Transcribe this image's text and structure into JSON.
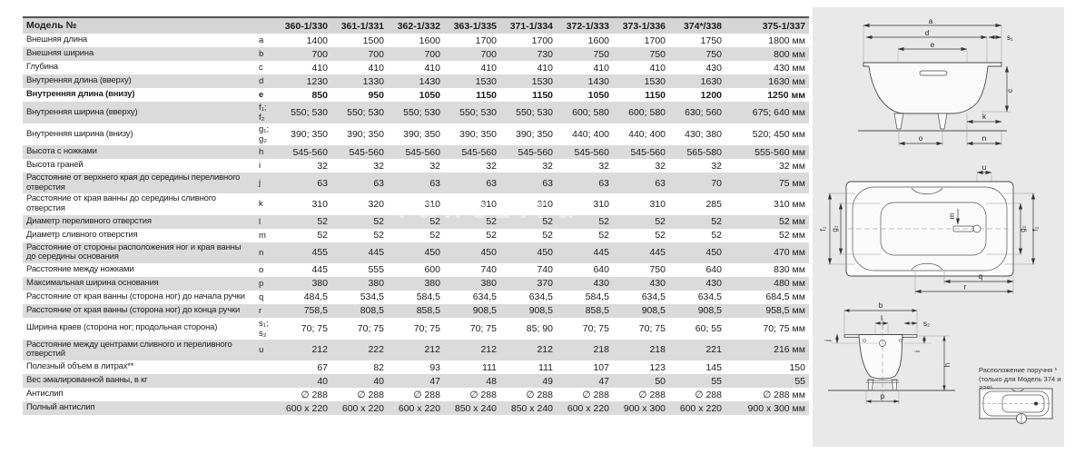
{
  "watermark": "ranez.ru",
  "table": {
    "header": {
      "label": "Модель №",
      "models": [
        "360-1/330",
        "361-1/331",
        "362-1/332",
        "363-1/335",
        "371-1/334",
        "372-1/333",
        "373-1/336",
        "374*/338",
        "375-1/337"
      ]
    },
    "rows": [
      {
        "label": "Внешняя длина",
        "letter": "a",
        "bold": false,
        "values": [
          "1400",
          "1500",
          "1600",
          "1700",
          "1700",
          "1600",
          "1700",
          "1750",
          "1800 мм"
        ]
      },
      {
        "label": "Внешняя ширина",
        "letter": "b",
        "bold": false,
        "values": [
          "700",
          "700",
          "700",
          "700",
          "730",
          "750",
          "750",
          "750",
          "800 мм"
        ]
      },
      {
        "label": "Глубина",
        "letter": "c",
        "bold": false,
        "values": [
          "410",
          "410",
          "410",
          "410",
          "410",
          "410",
          "410",
          "430",
          "430 мм"
        ]
      },
      {
        "label": "Внутренняя длина (вверху)",
        "letter": "d",
        "bold": false,
        "values": [
          "1230",
          "1330",
          "1430",
          "1530",
          "1530",
          "1430",
          "1530",
          "1630",
          "1630 мм"
        ]
      },
      {
        "label": "Внутренняя длина (внизу)",
        "letter": "e",
        "bold": true,
        "values": [
          "850",
          "950",
          "1050",
          "1150",
          "1150",
          "1050",
          "1150",
          "1200",
          "1250 мм"
        ]
      },
      {
        "label": "Внутренняя ширина (вверху)",
        "letter": "f₁; f₂",
        "bold": false,
        "values": [
          "550; 530",
          "550; 530",
          "550; 530",
          "550; 530",
          "550; 530",
          "600; 580",
          "600; 580",
          "630; 560",
          "675; 640 мм"
        ]
      },
      {
        "label": "Внутренняя ширина (внизу)",
        "letter": "g₁; g₂",
        "bold": false,
        "values": [
          "390; 350",
          "390; 350",
          "390; 350",
          "390; 350",
          "390; 350",
          "440; 400",
          "440; 400",
          "430; 380",
          "520; 450 мм"
        ]
      },
      {
        "label": "Высота с ножками",
        "letter": "h",
        "bold": false,
        "values": [
          "545-560",
          "545-560",
          "545-560",
          "545-560",
          "545-560",
          "545-560",
          "545-560",
          "565-580",
          "555-560 мм"
        ]
      },
      {
        "label": "Высота граней",
        "letter": "i",
        "bold": false,
        "values": [
          "32",
          "32",
          "32",
          "32",
          "32",
          "32",
          "32",
          "32",
          "32 мм"
        ]
      },
      {
        "label": "Расстояние от верхнего края до середины переливного отверстия",
        "letter": "j",
        "bold": false,
        "values": [
          "63",
          "63",
          "63",
          "63",
          "63",
          "63",
          "63",
          "70",
          "75 мм"
        ]
      },
      {
        "label": "Расстояние от края ванны до середины сливного отверстия",
        "letter": "k",
        "bold": false,
        "values": [
          "310",
          "320",
          "310",
          "310",
          "310",
          "310",
          "310",
          "285",
          "310 мм"
        ]
      },
      {
        "label": "Диаметр переливного отверстия",
        "letter": "l",
        "bold": false,
        "values": [
          "52",
          "52",
          "52",
          "52",
          "52",
          "52",
          "52",
          "52",
          "52 мм"
        ]
      },
      {
        "label": "Диаметр сливного отверстия",
        "letter": "m",
        "bold": false,
        "values": [
          "52",
          "52",
          "52",
          "52",
          "52",
          "52",
          "52",
          "52",
          "52 мм"
        ]
      },
      {
        "label": "Расстояние от стороны расположения ног и края ванны до середины основания",
        "letter": "n",
        "bold": false,
        "values": [
          "455",
          "445",
          "450",
          "450",
          "450",
          "445",
          "445",
          "450",
          "470 мм"
        ]
      },
      {
        "label": "Расстояние между ножками",
        "letter": "o",
        "bold": false,
        "values": [
          "445",
          "555",
          "600",
          "740",
          "740",
          "640",
          "750",
          "640",
          "830 мм"
        ]
      },
      {
        "label": "Максимальная ширина основания",
        "letter": "p",
        "bold": false,
        "values": [
          "380",
          "380",
          "380",
          "380",
          "370",
          "430",
          "430",
          "430",
          "480 мм"
        ]
      },
      {
        "label": "Расстояние от края ванны (сторона ног) до начала ручки",
        "letter": "q",
        "bold": false,
        "values": [
          "484,5",
          "534,5",
          "584,5",
          "634,5",
          "634,5",
          "584,5",
          "634,5",
          "634,5",
          "684,5 мм"
        ]
      },
      {
        "label": "Расстояние от края ванны (сторона ног) до конца ручки",
        "letter": "r",
        "bold": false,
        "values": [
          "758,5",
          "808,5",
          "858,5",
          "908,5",
          "908,5",
          "858,5",
          "908,5",
          "908,5",
          "958,5 мм"
        ]
      },
      {
        "label": "Ширина краев (сторона ног; продольная сторона)",
        "letter": "s₁; s₂",
        "bold": false,
        "values": [
          "70; 75",
          "70; 75",
          "70; 75",
          "70; 75",
          "85; 90",
          "70; 75",
          "70; 75",
          "60; 55",
          "70; 75 мм"
        ]
      },
      {
        "label": "Расстояние между центрами сливного и переливного отверстий",
        "letter": "u",
        "bold": false,
        "values": [
          "212",
          "222",
          "212",
          "212",
          "212",
          "218",
          "218",
          "221",
          "216 мм"
        ]
      },
      {
        "label": "Полезный объем в литрах**",
        "letter": "",
        "bold": false,
        "values": [
          "67",
          "82",
          "93",
          "111",
          "111",
          "107",
          "123",
          "145",
          "150"
        ]
      },
      {
        "label": "Вес эмалированной ванны, в кг",
        "letter": "",
        "bold": false,
        "values": [
          "40",
          "40",
          "47",
          "48",
          "49",
          "47",
          "50",
          "55",
          "55"
        ]
      },
      {
        "label": "Антислип",
        "letter": "",
        "bold": false,
        "values": [
          "∅ 288",
          "∅ 288",
          "∅ 288",
          "∅ 288",
          "∅ 288",
          "∅ 288",
          "∅ 288",
          "∅ 288",
          "∅ 288 мм"
        ]
      },
      {
        "label": "Полный антислип",
        "letter": "",
        "bold": false,
        "values": [
          "600 x 220",
          "600 x 220",
          "600 x 220",
          "850 x 240",
          "850 x 240",
          "600 x 220",
          "900 x 300",
          "600 x 220",
          "900 x 300 мм"
        ]
      }
    ]
  },
  "diagrams": {
    "side_view": {
      "labels": {
        "a": "a",
        "d": "d",
        "e": "e",
        "s1": "s₁",
        "c": "c",
        "k": "k",
        "o": "o",
        "n": "n"
      }
    },
    "top_view": {
      "labels": {
        "u": "u",
        "f1": "f₁",
        "g1": "g₁",
        "m": "m",
        "g2": "g₂",
        "f2": "f₂",
        "q": "q",
        "r": "r"
      }
    },
    "end_view": {
      "labels": {
        "b": "b",
        "l": "l",
        "s2": "s₂",
        "j": "j",
        "i": "i",
        "h": "h",
        "p": "p"
      }
    },
    "handle_note": {
      "line1": "Расположение поручня *",
      "line2": "(только для Модель 374 и 338)"
    }
  }
}
